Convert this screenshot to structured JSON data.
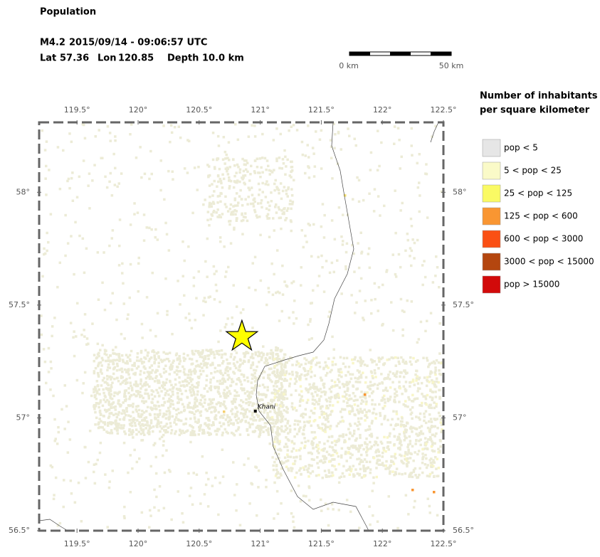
{
  "header": {
    "title": "Population",
    "event": {
      "magnitude": "M4.2",
      "datetime": "2015/09/14 - 09:06:57 UTC",
      "lat_label": "Lat",
      "lat": 57.36,
      "lon_label": "Lon",
      "lon": 120.85,
      "depth_label": "Depth",
      "depth": "10.0 km"
    }
  },
  "scale_bar": {
    "start_label": "0 km",
    "end_label": "50 km"
  },
  "map": {
    "xlim": [
      119.19,
      122.5
    ],
    "ylim": [
      56.5,
      58.31
    ],
    "xticks": [
      {
        "value": 119.5,
        "label": "119.5°"
      },
      {
        "value": 120,
        "label": "120°"
      },
      {
        "value": 120.5,
        "label": "120.5°"
      },
      {
        "value": 121,
        "label": "121°"
      },
      {
        "value": 121.5,
        "label": "121.5°"
      },
      {
        "value": 122,
        "label": "122°"
      },
      {
        "value": 122.5,
        "label": "122.5°"
      }
    ],
    "yticks": [
      {
        "value": 56.5,
        "label": "56.5°"
      },
      {
        "value": 57,
        "label": "57°"
      },
      {
        "value": 57.5,
        "label": "57.5°"
      },
      {
        "value": 58,
        "label": "58°"
      }
    ],
    "city": {
      "label": "Khani",
      "lon": 120.96,
      "lat": 57.03
    }
  },
  "legend": {
    "title": [
      "Number of inhabitants",
      "per square kilometer"
    ],
    "items": [
      {
        "label": "pop < 5",
        "color": "#e6e6e6"
      },
      {
        "label": "5 < pop < 25",
        "color": "#fafac8"
      },
      {
        "label": "25 < pop < 125",
        "color": "#fafa64"
      },
      {
        "label": "125 < pop < 600",
        "color": "#f99632"
      },
      {
        "label": "600 < pop < 3000",
        "color": "#fa5014"
      },
      {
        "label": "3000 < pop < 15000",
        "color": "#b4460f"
      },
      {
        "label": "pop > 15000",
        "color": "#d20a0a"
      }
    ]
  }
}
